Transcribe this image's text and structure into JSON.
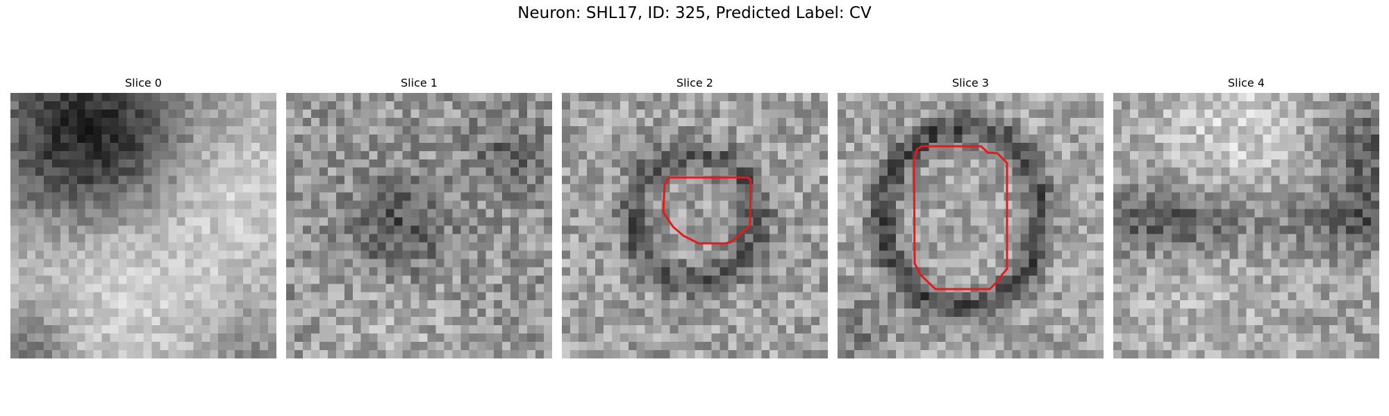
{
  "figure": {
    "title": "Neuron: SHL17, ID: 325, Predicted Label: CV"
  },
  "panels": [
    {
      "title": "Slice 0",
      "has_contour": false
    },
    {
      "title": "Slice 1",
      "has_contour": false
    },
    {
      "title": "Slice 2",
      "has_contour": true
    },
    {
      "title": "Slice 3",
      "has_contour": true
    },
    {
      "title": "Slice 4",
      "has_contour": false
    }
  ],
  "colors": {
    "contour": "#e41a1c",
    "background": "#ffffff"
  }
}
